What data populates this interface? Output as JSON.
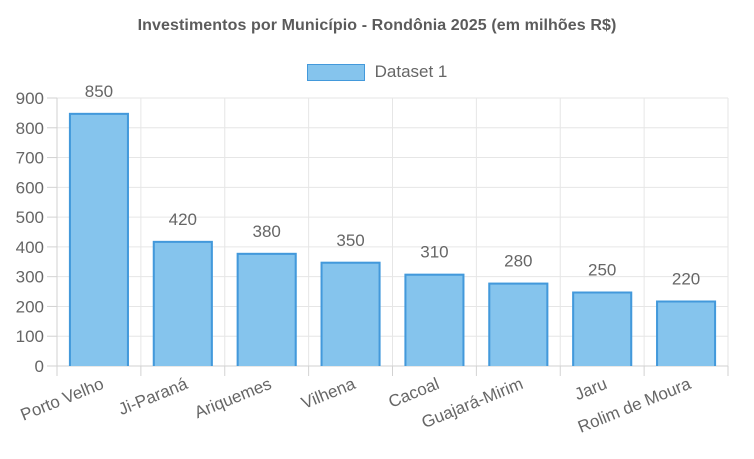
{
  "chart_data": {
    "type": "bar",
    "title": "Investimentos por Município - Rondônia 2025 (em milhões R$)",
    "legend": {
      "label": "Dataset 1",
      "position": "top"
    },
    "categories": [
      "Porto Velho",
      "Ji-Paraná",
      "Ariquemes",
      "Vilhena",
      "Cacoal",
      "Guajará-Mirim",
      "Jaru",
      "Rolim de Moura"
    ],
    "values": [
      850,
      420,
      380,
      350,
      310,
      280,
      250,
      220
    ],
    "xlabel": "",
    "ylabel": "",
    "ylim": [
      0,
      900
    ],
    "ytick_step": 100,
    "grid": true,
    "show_value_labels": true,
    "x_label_rotation_deg": -22
  },
  "colors": {
    "bar_fill": "#85C4ED",
    "bar_border": "#4399DB",
    "grid": "#E6E6E6",
    "axis_border": "#D2D2D2",
    "tick_text": "#666666",
    "title_text": "#5B5B5B",
    "background": "#FFFFFF"
  }
}
